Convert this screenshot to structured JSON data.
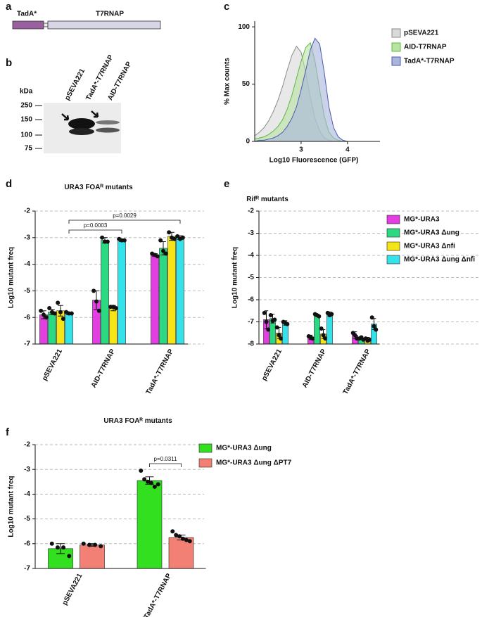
{
  "panel_labels": [
    "a",
    "b",
    "c",
    "d",
    "e",
    "f"
  ],
  "construct": {
    "segments": [
      "TadA*",
      "T7RNAP"
    ]
  },
  "blot": {
    "unit": "kDa",
    "markers": [
      250,
      150,
      100,
      75
    ],
    "lanes": [
      "pSEVA221",
      "TadA*-T7RNAP",
      "AID-T7RNAP"
    ]
  },
  "chart_data": [
    {
      "type": "area",
      "xlabel": "Log10 Fluorescence (GFP)",
      "ylabel": "% Max counts",
      "x": [
        2.0,
        2.1,
        2.2,
        2.3,
        2.4,
        2.5,
        2.6,
        2.7,
        2.8,
        2.9,
        3.0,
        3.1,
        3.2,
        3.3,
        3.4,
        3.5,
        3.6,
        3.7,
        3.8,
        3.9,
        4.0
      ],
      "series": [
        {
          "name": "pSEVA221",
          "color": "#8a8a8a",
          "fill": "#d9d9d9",
          "values": [
            5,
            8,
            12,
            18,
            26,
            36,
            48,
            62,
            75,
            83,
            78,
            60,
            38,
            20,
            9,
            3,
            1,
            0,
            0,
            0,
            0
          ]
        },
        {
          "name": "AID-T7RNAP",
          "color": "#5cb83f",
          "fill": "#b9e3a3",
          "values": [
            2,
            3,
            4,
            6,
            9,
            13,
            19,
            28,
            40,
            55,
            70,
            82,
            86,
            70,
            45,
            22,
            8,
            3,
            1,
            0,
            0
          ]
        },
        {
          "name": "TadA*-T7RNAP",
          "color": "#4a5bb0",
          "fill": "#a9b6dc",
          "values": [
            0,
            1,
            1,
            2,
            3,
            5,
            8,
            13,
            20,
            30,
            45,
            62,
            80,
            90,
            85,
            60,
            30,
            12,
            4,
            1,
            0
          ]
        }
      ],
      "xlim": [
        2,
        4.7
      ],
      "ylim": [
        0,
        105
      ],
      "xticks": [
        3,
        4
      ],
      "yticks": [
        0,
        50,
        100
      ],
      "legend": "right"
    },
    {
      "type": "bar",
      "title": "URA3 FOAᴿ mutants",
      "ylabel": "Log10 mutant freq",
      "categories": [
        "pSEVA221",
        "AID-T7RNAP",
        "TadA*-T7RNAP"
      ],
      "series": [
        {
          "color": "#e23ee2",
          "values": [
            -5.9,
            -5.35,
            -3.65
          ],
          "errors": [
            0.15,
            0.35,
            0.05
          ],
          "points": [
            [
              -5.75,
              -5.9,
              -6.0
            ],
            [
              -5.0,
              -5.4,
              -5.75
            ],
            [
              -3.6,
              -3.65,
              -3.7
            ]
          ]
        },
        {
          "color": "#2bd982",
          "values": [
            -5.8,
            -3.1,
            -3.4
          ],
          "errors": [
            0.1,
            0.1,
            0.25
          ],
          "points": [
            [
              -5.65,
              -5.8,
              -5.85
            ],
            [
              -3.0,
              -3.15,
              -3.15
            ],
            [
              -3.1,
              -3.5,
              -3.6
            ]
          ]
        },
        {
          "color": "#f5e416",
          "values": [
            -5.75,
            -5.65,
            -2.95
          ],
          "errors": [
            0.2,
            0.1,
            0.15
          ],
          "points": [
            [
              -5.45,
              -5.8,
              -6.05
            ],
            [
              -5.6,
              -5.6,
              -5.65
            ],
            [
              -2.8,
              -3.0,
              -3.05
            ]
          ]
        },
        {
          "color": "#35e2ea",
          "values": [
            -5.85,
            -3.1,
            -3.0
          ],
          "errors": [
            0.05,
            0.05,
            0.07
          ],
          "points": [
            [
              -5.8,
              -5.85,
              -5.85
            ],
            [
              -3.05,
              -3.1,
              -3.1
            ],
            [
              -2.95,
              -3.05,
              -3.0
            ]
          ]
        }
      ],
      "ylim": [
        -7,
        -2
      ],
      "yticks": [
        -7,
        -6,
        -5,
        -4,
        -3,
        -2
      ],
      "grid": true,
      "annotations": [
        "p=0.0003",
        "p=0.0029"
      ]
    },
    {
      "type": "bar",
      "title": "Rifᴿ mutants",
      "ylabel": "Log10 mutant freq",
      "categories": [
        "pSEVA221",
        "AID-T7RNAP",
        "TadA*-T7RNAP"
      ],
      "series": [
        {
          "name": "MG*-URA3",
          "color": "#e23ee2",
          "values": [
            -6.9,
            -7.7,
            -7.6
          ],
          "errors": [
            0.4,
            0.1,
            0.15
          ],
          "points": [
            [
              -6.6,
              -7.0,
              -7.35
            ],
            [
              -7.65,
              -7.7,
              -7.75
            ],
            [
              -7.5,
              -7.6,
              -7.75
            ]
          ]
        },
        {
          "name": "MG*-URA3 Δung",
          "color": "#2bd982",
          "values": [
            -6.85,
            -6.7,
            -7.75
          ],
          "errors": [
            0.2,
            0.05,
            0.05
          ],
          "points": [
            [
              -6.7,
              -6.95,
              -6.9
            ],
            [
              -6.65,
              -6.7,
              -6.75
            ],
            [
              -7.75,
              -7.7,
              -7.8
            ]
          ]
        },
        {
          "name": "MG*-URA3 Δnfi",
          "color": "#f5e416",
          "values": [
            -7.5,
            -7.55,
            -7.8
          ],
          "errors": [
            0.25,
            0.2,
            0.1
          ],
          "points": [
            [
              -7.25,
              -7.6,
              -7.75
            ],
            [
              -7.3,
              -7.6,
              -7.75
            ],
            [
              -7.75,
              -7.85,
              -7.8
            ]
          ]
        },
        {
          "name": "MG*-URA3 Δung Δnfi",
          "color": "#35e2ea",
          "values": [
            -7.05,
            -6.65,
            -7.1
          ],
          "errors": [
            0.1,
            0.1,
            0.25
          ],
          "points": [
            [
              -7.0,
              -7.05,
              -7.1
            ],
            [
              -6.6,
              -6.7,
              -6.65
            ],
            [
              -6.8,
              -7.2,
              -7.35
            ]
          ]
        }
      ],
      "ylim": [
        -8,
        -2
      ],
      "yticks": [
        -8,
        -7,
        -6,
        -5,
        -4,
        -3,
        -2
      ],
      "grid": true,
      "legend": "right"
    },
    {
      "type": "bar",
      "title": "URA3 FOAᴿ mutants",
      "ylabel": "Log10 mutant freq",
      "categories": [
        "pSEVA221",
        "TadA*-T7RNAP"
      ],
      "series": [
        {
          "name": "MG*-URA3 Δung",
          "color": "#33e01f",
          "values": [
            -6.2,
            -3.45
          ],
          "errors": [
            0.2,
            0.15
          ],
          "points": [
            [
              -6.0,
              -6.15,
              -6.15,
              -6.5
            ],
            [
              -3.05,
              -3.4,
              -3.5,
              -3.55,
              -3.7,
              -3.6
            ]
          ]
        },
        {
          "name": "MG*-URA3 Δung ΔPT7",
          "color": "#f28074",
          "values": [
            -6.05,
            -5.75
          ],
          "errors": [
            0.05,
            0.1
          ],
          "points": [
            [
              -6.0,
              -6.05,
              -6.05,
              -6.1
            ],
            [
              -5.5,
              -5.65,
              -5.7,
              -5.8,
              -5.85,
              -5.9
            ]
          ]
        }
      ],
      "ylim": [
        -7,
        -2
      ],
      "yticks": [
        -7,
        -6,
        -5,
        -4,
        -3,
        -2
      ],
      "grid": true,
      "legend": "right",
      "annotations": [
        "p=0.0311"
      ]
    }
  ]
}
